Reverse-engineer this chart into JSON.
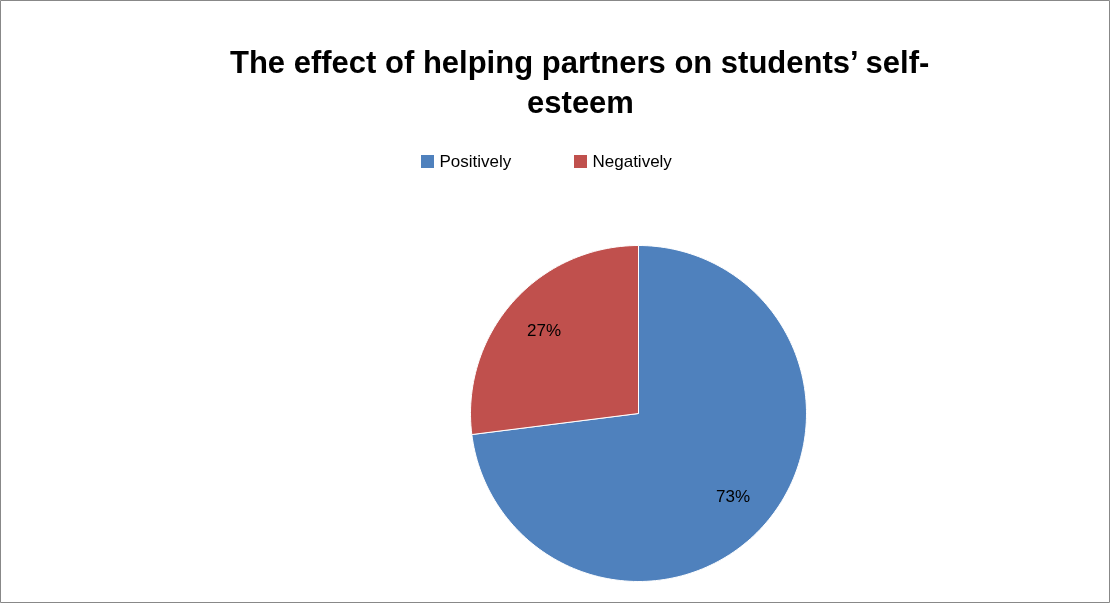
{
  "chart_data": {
    "type": "pie",
    "title": "The effect of helping partners on students’ self-esteem",
    "categories": [
      "Positively",
      "Negatively"
    ],
    "values": [
      73,
      27
    ],
    "colors": [
      "#4f81bd",
      "#c0504d"
    ],
    "value_labels": [
      "73%",
      "27%"
    ],
    "legend": "top"
  }
}
